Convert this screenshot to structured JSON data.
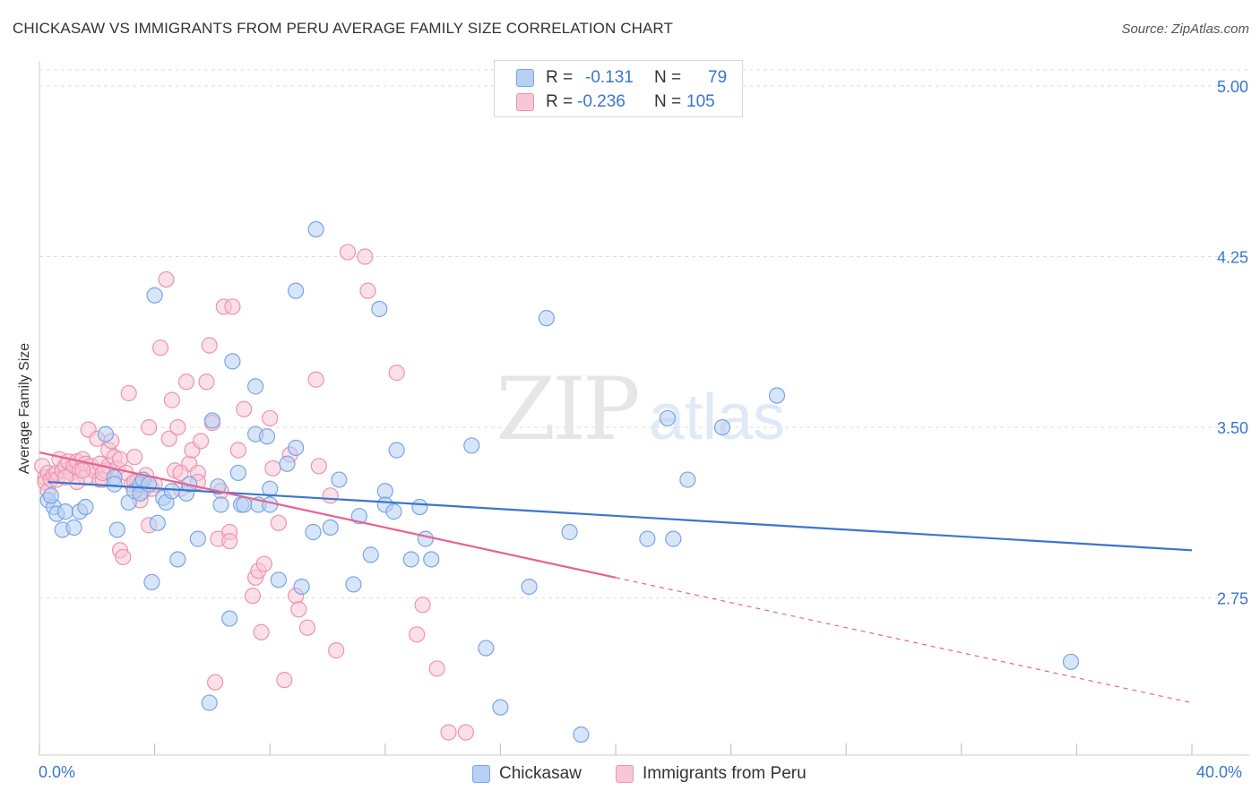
{
  "title": "CHICKASAW VS IMMIGRANTS FROM PERU AVERAGE FAMILY SIZE CORRELATION CHART",
  "source": "Source: ZipAtlas.com",
  "watermark": {
    "zip": "ZIP",
    "atlas": "atlas"
  },
  "colors": {
    "blue": "#3a76cc",
    "blue_fill": "#b7d0f3",
    "blue_stroke": "#7aa5e6",
    "pink": "#e8628f",
    "pink_fill": "#f8c7d6",
    "pink_stroke": "#ec93b2",
    "grid": "#dddddd",
    "axis_text": "#3a76cc"
  },
  "legend": {
    "r_label": "R =",
    "n_label": "N =",
    "blue": {
      "r": "-0.131",
      "n": "79"
    },
    "pink": {
      "r": "-0.236",
      "n": "105"
    }
  },
  "bottom_legend": {
    "blue": "Chickasaw",
    "pink": "Immigrants from Peru"
  },
  "chart_data": {
    "type": "scatter",
    "title": "CHICKASAW VS IMMIGRANTS FROM PERU AVERAGE FAMILY SIZE CORRELATION CHART",
    "xlabel": "",
    "ylabel": "Average Family Size",
    "xlim": [
      0,
      40
    ],
    "ylim": [
      2.06,
      5.11
    ],
    "x_tick_labels": [
      "0.0%",
      "40.0%"
    ],
    "y_ticks": [
      2.75,
      3.5,
      4.25,
      5.0
    ],
    "y_tick_labels": [
      "2.75",
      "3.50",
      "4.25",
      "5.00"
    ],
    "grid": true,
    "series": [
      {
        "name": "Chickasaw",
        "r": -0.131,
        "n": 79,
        "trend": {
          "x": [
            0.3,
            40.0
          ],
          "y": [
            3.26,
            2.96
          ]
        },
        "points": [
          [
            0.3,
            3.18
          ],
          [
            0.5,
            3.15
          ],
          [
            0.6,
            3.12
          ],
          [
            0.8,
            3.05
          ],
          [
            0.9,
            3.13
          ],
          [
            1.2,
            3.06
          ],
          [
            1.4,
            3.13
          ],
          [
            1.6,
            3.15
          ],
          [
            2.3,
            3.47
          ],
          [
            2.6,
            3.28
          ],
          [
            2.6,
            3.25
          ],
          [
            2.7,
            3.05
          ],
          [
            3.1,
            3.17
          ],
          [
            3.3,
            3.22
          ],
          [
            3.5,
            3.25
          ],
          [
            3.5,
            3.21
          ],
          [
            3.6,
            3.27
          ],
          [
            3.8,
            3.25
          ],
          [
            3.9,
            2.82
          ],
          [
            4.0,
            4.08
          ],
          [
            4.1,
            3.08
          ],
          [
            4.3,
            3.19
          ],
          [
            4.4,
            3.17
          ],
          [
            4.6,
            3.22
          ],
          [
            4.8,
            2.92
          ],
          [
            5.1,
            3.21
          ],
          [
            5.2,
            3.25
          ],
          [
            5.5,
            3.01
          ],
          [
            5.9,
            2.29
          ],
          [
            6.0,
            3.53
          ],
          [
            6.2,
            3.24
          ],
          [
            6.3,
            3.16
          ],
          [
            6.6,
            2.66
          ],
          [
            6.7,
            3.79
          ],
          [
            6.9,
            3.3
          ],
          [
            7.0,
            3.16
          ],
          [
            7.1,
            3.16
          ],
          [
            7.5,
            3.47
          ],
          [
            7.5,
            3.68
          ],
          [
            7.6,
            3.16
          ],
          [
            7.9,
            3.46
          ],
          [
            8.0,
            3.23
          ],
          [
            8.0,
            3.16
          ],
          [
            8.3,
            2.83
          ],
          [
            8.6,
            3.34
          ],
          [
            8.9,
            4.1
          ],
          [
            8.9,
            3.41
          ],
          [
            9.1,
            2.8
          ],
          [
            9.5,
            3.04
          ],
          [
            9.6,
            4.37
          ],
          [
            10.1,
            3.06
          ],
          [
            10.4,
            3.27
          ],
          [
            10.9,
            2.81
          ],
          [
            11.1,
            3.11
          ],
          [
            11.5,
            2.94
          ],
          [
            11.8,
            4.02
          ],
          [
            12.0,
            3.22
          ],
          [
            12.0,
            3.16
          ],
          [
            12.3,
            3.13
          ],
          [
            12.4,
            3.4
          ],
          [
            12.9,
            2.92
          ],
          [
            13.2,
            3.15
          ],
          [
            13.4,
            3.01
          ],
          [
            13.6,
            2.92
          ],
          [
            15.0,
            3.42
          ],
          [
            15.5,
            2.53
          ],
          [
            16.0,
            2.27
          ],
          [
            17.0,
            2.8
          ],
          [
            17.6,
            3.98
          ],
          [
            18.4,
            3.04
          ],
          [
            18.8,
            2.15
          ],
          [
            21.1,
            3.01
          ],
          [
            21.8,
            3.54
          ],
          [
            22.0,
            3.01
          ],
          [
            22.5,
            3.27
          ],
          [
            23.7,
            3.5
          ],
          [
            25.6,
            3.64
          ],
          [
            35.8,
            2.47
          ],
          [
            0.4,
            3.2
          ]
        ]
      },
      {
        "name": "Immigrants from Peru",
        "r": -0.236,
        "n": 105,
        "trend": {
          "x": [
            0.0,
            20.0
          ],
          "y": [
            3.39,
            2.84
          ]
        },
        "trend_dashed": {
          "x": [
            20.0,
            40.0
          ],
          "y": [
            2.84,
            2.29
          ]
        },
        "points": [
          [
            0.1,
            3.33
          ],
          [
            0.2,
            3.28
          ],
          [
            0.2,
            3.26
          ],
          [
            0.3,
            3.22
          ],
          [
            0.3,
            3.3
          ],
          [
            0.4,
            3.27
          ],
          [
            0.5,
            3.29
          ],
          [
            0.6,
            3.3
          ],
          [
            0.6,
            3.27
          ],
          [
            0.7,
            3.36
          ],
          [
            0.8,
            3.31
          ],
          [
            0.9,
            3.33
          ],
          [
            1.0,
            3.35
          ],
          [
            1.1,
            3.3
          ],
          [
            1.2,
            3.33
          ],
          [
            1.3,
            3.35
          ],
          [
            1.4,
            3.31
          ],
          [
            1.5,
            3.36
          ],
          [
            1.6,
            3.34
          ],
          [
            1.6,
            3.28
          ],
          [
            1.7,
            3.49
          ],
          [
            1.8,
            3.33
          ],
          [
            1.9,
            3.31
          ],
          [
            2.0,
            3.45
          ],
          [
            2.1,
            3.34
          ],
          [
            2.1,
            3.27
          ],
          [
            2.2,
            3.27
          ],
          [
            2.3,
            3.31
          ],
          [
            2.4,
            3.33
          ],
          [
            2.4,
            3.4
          ],
          [
            2.5,
            3.44
          ],
          [
            2.6,
            3.37
          ],
          [
            2.7,
            3.32
          ],
          [
            2.8,
            3.36
          ],
          [
            2.8,
            2.96
          ],
          [
            2.9,
            2.93
          ],
          [
            3.0,
            3.3
          ],
          [
            3.1,
            3.65
          ],
          [
            3.2,
            3.25
          ],
          [
            3.3,
            3.37
          ],
          [
            3.4,
            3.26
          ],
          [
            3.5,
            3.18
          ],
          [
            3.6,
            3.22
          ],
          [
            3.7,
            3.29
          ],
          [
            3.8,
            3.5
          ],
          [
            3.8,
            3.07
          ],
          [
            3.9,
            3.23
          ],
          [
            4.0,
            3.25
          ],
          [
            4.2,
            3.85
          ],
          [
            4.4,
            4.15
          ],
          [
            4.5,
            3.45
          ],
          [
            4.6,
            3.62
          ],
          [
            4.7,
            3.31
          ],
          [
            4.8,
            3.5
          ],
          [
            4.9,
            3.23
          ],
          [
            5.1,
            3.7
          ],
          [
            5.2,
            3.34
          ],
          [
            5.3,
            3.4
          ],
          [
            5.5,
            3.3
          ],
          [
            5.6,
            3.44
          ],
          [
            5.8,
            3.7
          ],
          [
            5.9,
            3.86
          ],
          [
            6.0,
            3.52
          ],
          [
            6.1,
            2.38
          ],
          [
            6.2,
            3.01
          ],
          [
            6.3,
            3.22
          ],
          [
            6.4,
            4.03
          ],
          [
            6.6,
            3.04
          ],
          [
            6.7,
            4.03
          ],
          [
            6.9,
            3.4
          ],
          [
            7.1,
            3.58
          ],
          [
            7.4,
            2.76
          ],
          [
            7.5,
            2.84
          ],
          [
            7.6,
            2.87
          ],
          [
            7.7,
            2.6
          ],
          [
            7.8,
            2.9
          ],
          [
            8.0,
            3.54
          ],
          [
            8.1,
            3.32
          ],
          [
            8.3,
            3.08
          ],
          [
            8.5,
            2.39
          ],
          [
            8.7,
            3.38
          ],
          [
            8.9,
            2.76
          ],
          [
            9.0,
            2.7
          ],
          [
            9.3,
            2.62
          ],
          [
            9.6,
            3.71
          ],
          [
            9.7,
            3.33
          ],
          [
            10.1,
            3.2
          ],
          [
            10.3,
            2.52
          ],
          [
            10.7,
            4.27
          ],
          [
            11.3,
            4.25
          ],
          [
            11.4,
            4.1
          ],
          [
            12.4,
            3.74
          ],
          [
            13.1,
            2.59
          ],
          [
            13.3,
            2.72
          ],
          [
            13.8,
            2.44
          ],
          [
            14.2,
            2.16
          ],
          [
            14.8,
            2.16
          ],
          [
            2.2,
            3.3
          ],
          [
            1.3,
            3.26
          ],
          [
            3.3,
            3.26
          ],
          [
            0.9,
            3.28
          ],
          [
            1.5,
            3.31
          ],
          [
            4.9,
            3.3
          ],
          [
            5.5,
            3.26
          ],
          [
            6.6,
            3.0
          ]
        ]
      }
    ]
  }
}
